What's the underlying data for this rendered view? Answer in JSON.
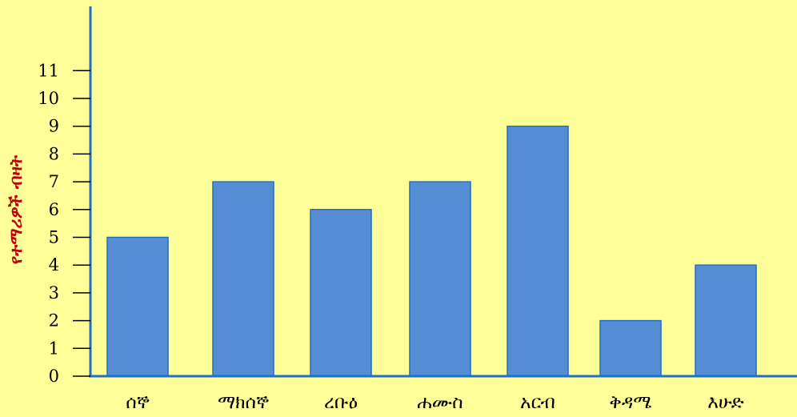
{
  "chart_data": {
    "type": "bar",
    "title": "",
    "xlabel": "",
    "ylabel": "የተማሪዎች ብዛት",
    "categories": [
      "ሰኞ",
      "ማክሰኞ",
      "ረቡዕ",
      "ሐሙስ",
      "አርብ",
      "ቅዳሜ",
      "እሁድ"
    ],
    "values": [
      5,
      7,
      6,
      7,
      9,
      2,
      4
    ],
    "yticks": [
      "0",
      "1",
      "2",
      "3",
      "4",
      "5",
      "6",
      "7",
      "8",
      "9",
      "10",
      "11"
    ],
    "ylim": [
      0,
      12
    ],
    "grid": false,
    "legend": false
  },
  "colors": {
    "background": "#FFFF99",
    "bar_fill": "#558ED5",
    "bar_stroke": "#1F6FC5",
    "axis": "#1F6FC5",
    "ylabel": "#C00000",
    "text": "#000000"
  }
}
